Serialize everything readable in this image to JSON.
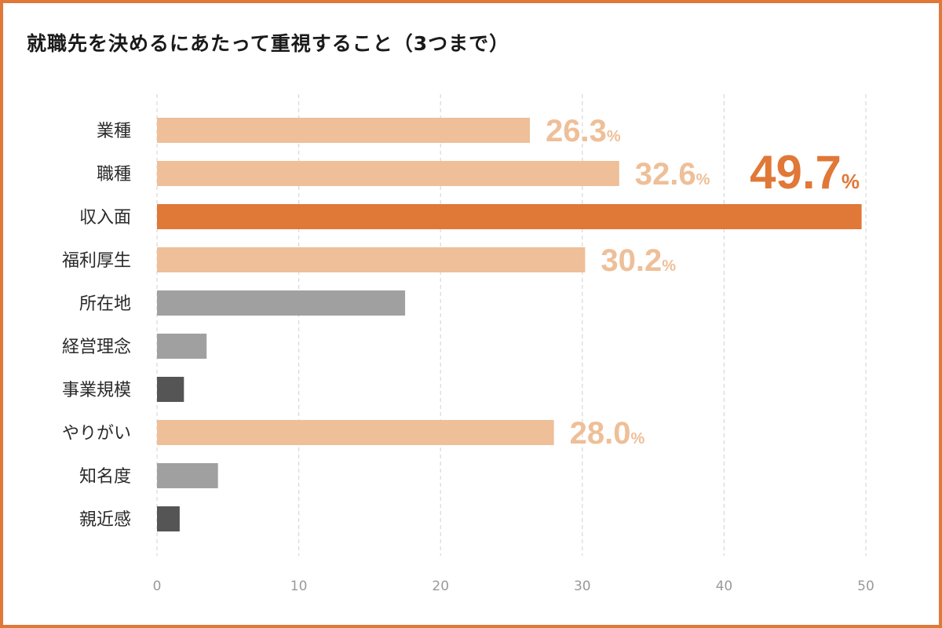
{
  "title": "就職先を決めるにあたって重視すること（3つまで）",
  "colors": {
    "frame": "#e07838",
    "highlight": "#e07838",
    "light_orange": "#eebf98",
    "gray": "#a0a0a0",
    "dark_gray": "#555555",
    "grid": "#d8d8d8"
  },
  "chart_data": {
    "type": "bar",
    "orientation": "horizontal",
    "title": "就職先を決めるにあたって重視すること（3つまで）",
    "xlabel": "",
    "ylabel": "",
    "xlim": [
      0,
      50
    ],
    "xticks": [
      0,
      10,
      20,
      30,
      40,
      50
    ],
    "grid": true,
    "categories": [
      "業種",
      "職種",
      "収入面",
      "福利厚生",
      "所在地",
      "経営理念",
      "事業規模",
      "やりがい",
      "知名度",
      "親近感"
    ],
    "values": [
      26.3,
      32.6,
      49.7,
      30.2,
      17.5,
      3.5,
      1.9,
      28.0,
      4.3,
      1.6
    ],
    "bar_colors": [
      "#eebf98",
      "#eebf98",
      "#e07838",
      "#eebf98",
      "#a0a0a0",
      "#a0a0a0",
      "#555555",
      "#eebf98",
      "#a0a0a0",
      "#555555"
    ],
    "data_labels": [
      "26.3",
      "32.6",
      "49.7",
      "30.2",
      "",
      "",
      "",
      "28.0",
      "",
      ""
    ],
    "label_unit": "%"
  }
}
